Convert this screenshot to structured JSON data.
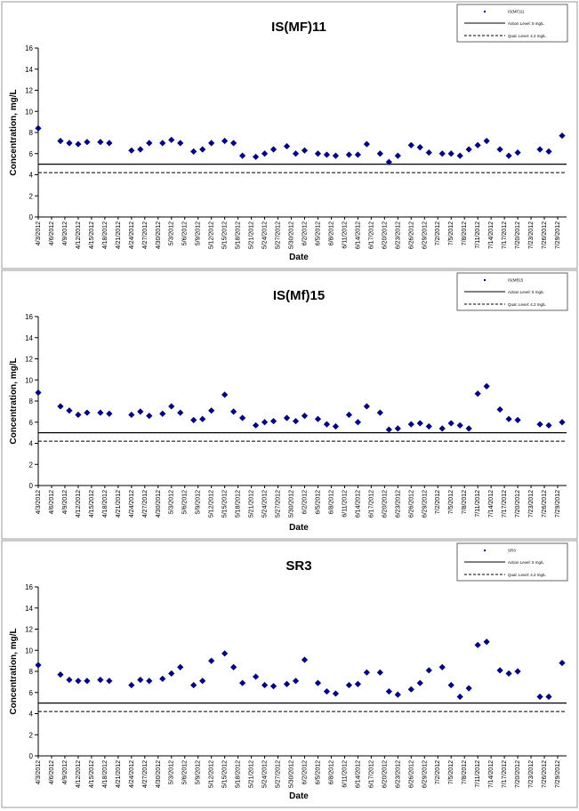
{
  "chart_data": [
    {
      "type": "scatter",
      "title": "IS(MF)11",
      "xlabel": "Date",
      "ylabel": "Concentration, mg/L",
      "ylim": [
        0,
        16
      ],
      "yticks": [
        0,
        2,
        4,
        6,
        8,
        10,
        12,
        14,
        16
      ],
      "x_range": [
        "4/3/2012",
        "7/31/2012"
      ],
      "xtick_labels": [
        "4/3/2012",
        "4/6/2012",
        "4/9/2012",
        "4/12/2012",
        "4/15/2012",
        "4/18/2012",
        "4/21/2012",
        "4/24/2012",
        "4/27/2012",
        "4/30/2012",
        "5/3/2012",
        "5/6/2012",
        "5/9/2012",
        "5/12/2012",
        "5/15/2012",
        "5/18/2012",
        "5/21/2012",
        "5/24/2012",
        "5/27/2012",
        "5/30/2012",
        "6/2/2012",
        "6/5/2012",
        "6/8/2012",
        "6/11/2012",
        "6/14/2012",
        "6/17/2012",
        "6/20/2012",
        "6/23/2012",
        "6/26/2012",
        "6/29/2012",
        "7/2/2012",
        "7/5/2012",
        "7/8/2012",
        "7/11/2012",
        "7/14/2012",
        "7/17/2012",
        "7/20/2012",
        "7/23/2012",
        "7/26/2012",
        "7/29/2012"
      ],
      "legend_position": "top-right",
      "legend": [
        "IS(MF)11",
        "Action Level: 5 mg/L",
        "Qual. Level: 4.2 mg/L"
      ],
      "action_level": 5,
      "qual_level": 4.2,
      "series": [
        {
          "name": "IS(MF)11",
          "color": "#00008b",
          "x": [
            "4/3/2012",
            "4/8/2012",
            "4/10/2012",
            "4/12/2012",
            "4/14/2012",
            "4/17/2012",
            "4/19/2012",
            "4/24/2012",
            "4/26/2012",
            "4/28/2012",
            "5/1/2012",
            "5/3/2012",
            "5/5/2012",
            "5/8/2012",
            "5/10/2012",
            "5/12/2012",
            "5/15/2012",
            "5/17/2012",
            "5/19/2012",
            "5/22/2012",
            "5/24/2012",
            "5/26/2012",
            "5/29/2012",
            "5/31/2012",
            "6/2/2012",
            "6/5/2012",
            "6/7/2012",
            "6/9/2012",
            "6/12/2012",
            "6/14/2012",
            "6/16/2012",
            "6/19/2012",
            "6/21/2012",
            "6/23/2012",
            "6/26/2012",
            "6/28/2012",
            "6/30/2012",
            "7/3/2012",
            "7/5/2012",
            "7/7/2012",
            "7/9/2012",
            "7/11/2012",
            "7/13/2012",
            "7/16/2012",
            "7/18/2012",
            "7/20/2012",
            "7/25/2012",
            "7/27/2012",
            "7/30/2012"
          ],
          "y": [
            8.4,
            7.2,
            7.0,
            6.9,
            7.1,
            7.1,
            7.0,
            6.3,
            6.4,
            7.0,
            7.0,
            7.3,
            7.0,
            6.2,
            6.4,
            7.0,
            7.2,
            7.0,
            5.8,
            5.7,
            6.0,
            6.4,
            6.7,
            6.0,
            6.3,
            6.0,
            5.9,
            5.8,
            5.9,
            5.9,
            6.9,
            6.0,
            5.2,
            5.8,
            6.8,
            6.6,
            6.1,
            6.0,
            6.0,
            5.8,
            6.4,
            6.8,
            7.2,
            6.4,
            5.8,
            6.1,
            6.4,
            6.2,
            7.7
          ]
        }
      ]
    },
    {
      "type": "scatter",
      "title": "IS(Mf)15",
      "xlabel": "Date",
      "ylabel": "Concentration, mg/L",
      "ylim": [
        0,
        16
      ],
      "yticks": [
        0,
        2,
        4,
        6,
        8,
        10,
        12,
        14,
        16
      ],
      "x_range": [
        "4/3/2012",
        "7/31/2012"
      ],
      "xtick_labels": [
        "4/3/2012",
        "4/6/2012",
        "4/9/2012",
        "4/12/2012",
        "4/15/2012",
        "4/18/2012",
        "4/21/2012",
        "4/24/2012",
        "4/27/2012",
        "4/30/2012",
        "5/3/2012",
        "5/6/2012",
        "5/9/2012",
        "5/12/2012",
        "5/15/2012",
        "5/18/2012",
        "5/21/2012",
        "5/24/2012",
        "5/27/2012",
        "5/30/2012",
        "6/2/2012",
        "6/5/2012",
        "6/8/2012",
        "6/11/2012",
        "6/14/2012",
        "6/17/2012",
        "6/20/2012",
        "6/23/2012",
        "6/26/2012",
        "6/29/2012",
        "7/2/2012",
        "7/5/2012",
        "7/8/2012",
        "7/11/2012",
        "7/14/2012",
        "7/17/2012",
        "7/20/2012",
        "7/23/2012",
        "7/26/2012",
        "7/29/2012"
      ],
      "legend_position": "top-right",
      "legend": [
        "IS(Mf)15",
        "Action Level: 5 mg/L",
        "Qual. Level: 4.2 mg/L"
      ],
      "action_level": 5,
      "qual_level": 4.2,
      "series": [
        {
          "name": "IS(Mf)15",
          "color": "#00008b",
          "x": [
            "4/3/2012",
            "4/8/2012",
            "4/10/2012",
            "4/12/2012",
            "4/14/2012",
            "4/17/2012",
            "4/19/2012",
            "4/24/2012",
            "4/26/2012",
            "4/28/2012",
            "5/1/2012",
            "5/3/2012",
            "5/5/2012",
            "5/8/2012",
            "5/10/2012",
            "5/12/2012",
            "5/15/2012",
            "5/17/2012",
            "5/19/2012",
            "5/22/2012",
            "5/24/2012",
            "5/26/2012",
            "5/29/2012",
            "5/31/2012",
            "6/2/2012",
            "6/5/2012",
            "6/7/2012",
            "6/9/2012",
            "6/12/2012",
            "6/14/2012",
            "6/16/2012",
            "6/19/2012",
            "6/21/2012",
            "6/23/2012",
            "6/26/2012",
            "6/28/2012",
            "6/30/2012",
            "7/3/2012",
            "7/5/2012",
            "7/7/2012",
            "7/9/2012",
            "7/11/2012",
            "7/13/2012",
            "7/16/2012",
            "7/18/2012",
            "7/20/2012",
            "7/25/2012",
            "7/27/2012",
            "7/30/2012"
          ],
          "y": [
            8.8,
            7.5,
            7.1,
            6.7,
            6.9,
            6.9,
            6.8,
            6.7,
            7.0,
            6.6,
            6.8,
            7.5,
            6.9,
            6.2,
            6.3,
            7.1,
            8.6,
            7.0,
            6.4,
            5.7,
            6.0,
            6.1,
            6.4,
            6.1,
            6.6,
            6.3,
            5.8,
            5.6,
            6.7,
            6.0,
            7.5,
            6.9,
            5.3,
            5.4,
            5.8,
            5.9,
            5.6,
            5.4,
            5.9,
            5.7,
            5.4,
            8.7,
            9.4,
            7.2,
            6.3,
            6.2,
            5.8,
            5.7,
            6.0
          ]
        }
      ]
    },
    {
      "type": "scatter",
      "title": "SR3",
      "xlabel": "Date",
      "ylabel": "Concentration, mg/L",
      "ylim": [
        0,
        16
      ],
      "yticks": [
        0,
        2,
        4,
        6,
        8,
        10,
        12,
        14,
        16
      ],
      "x_range": [
        "4/3/2012",
        "7/31/2012"
      ],
      "xtick_labels": [
        "4/3/2012",
        "4/6/2012",
        "4/9/2012",
        "4/12/2012",
        "4/15/2012",
        "4/18/2012",
        "4/21/2012",
        "4/24/2012",
        "4/27/2012",
        "4/30/2012",
        "5/3/2012",
        "5/6/2012",
        "5/9/2012",
        "5/12/2012",
        "5/15/2012",
        "5/18/2012",
        "5/21/2012",
        "5/24/2012",
        "5/27/2012",
        "5/30/2012",
        "6/2/2012",
        "6/5/2012",
        "6/8/2012",
        "6/11/2012",
        "6/14/2012",
        "6/17/2012",
        "6/20/2012",
        "6/23/2012",
        "6/26/2012",
        "6/29/2012",
        "7/2/2012",
        "7/5/2012",
        "7/8/2012",
        "7/11/2012",
        "7/14/2012",
        "7/17/2012",
        "7/20/2012",
        "7/23/2012",
        "7/26/2012",
        "7/29/2012"
      ],
      "legend_position": "top-right",
      "legend": [
        "SR3",
        "Action Level: 5 mg/L",
        "Qual. Level: 4.2 mg/L"
      ],
      "action_level": 5,
      "qual_level": 4.2,
      "series": [
        {
          "name": "SR3",
          "color": "#00008b",
          "x": [
            "4/3/2012",
            "4/8/2012",
            "4/10/2012",
            "4/12/2012",
            "4/14/2012",
            "4/17/2012",
            "4/19/2012",
            "4/24/2012",
            "4/26/2012",
            "4/28/2012",
            "5/1/2012",
            "5/3/2012",
            "5/5/2012",
            "5/8/2012",
            "5/10/2012",
            "5/12/2012",
            "5/15/2012",
            "5/17/2012",
            "5/19/2012",
            "5/22/2012",
            "5/24/2012",
            "5/26/2012",
            "5/29/2012",
            "5/31/2012",
            "6/2/2012",
            "6/5/2012",
            "6/7/2012",
            "6/9/2012",
            "6/12/2012",
            "6/14/2012",
            "6/16/2012",
            "6/19/2012",
            "6/21/2012",
            "6/23/2012",
            "6/26/2012",
            "6/28/2012",
            "6/30/2012",
            "7/3/2012",
            "7/5/2012",
            "7/7/2012",
            "7/9/2012",
            "7/11/2012",
            "7/13/2012",
            "7/16/2012",
            "7/18/2012",
            "7/20/2012",
            "7/25/2012",
            "7/27/2012",
            "7/30/2012"
          ],
          "y": [
            8.6,
            7.7,
            7.2,
            7.1,
            7.1,
            7.2,
            7.1,
            6.7,
            7.2,
            7.1,
            7.3,
            7.8,
            8.4,
            6.7,
            7.1,
            9.0,
            9.7,
            8.4,
            6.9,
            7.5,
            6.7,
            6.6,
            6.8,
            7.1,
            9.1,
            6.9,
            6.1,
            5.9,
            6.7,
            6.8,
            7.9,
            7.9,
            6.1,
            5.8,
            6.3,
            6.9,
            8.1,
            8.4,
            6.7,
            5.6,
            6.4,
            10.5,
            10.8,
            8.1,
            7.8,
            8.0,
            5.6,
            5.6,
            8.8
          ]
        }
      ]
    }
  ]
}
